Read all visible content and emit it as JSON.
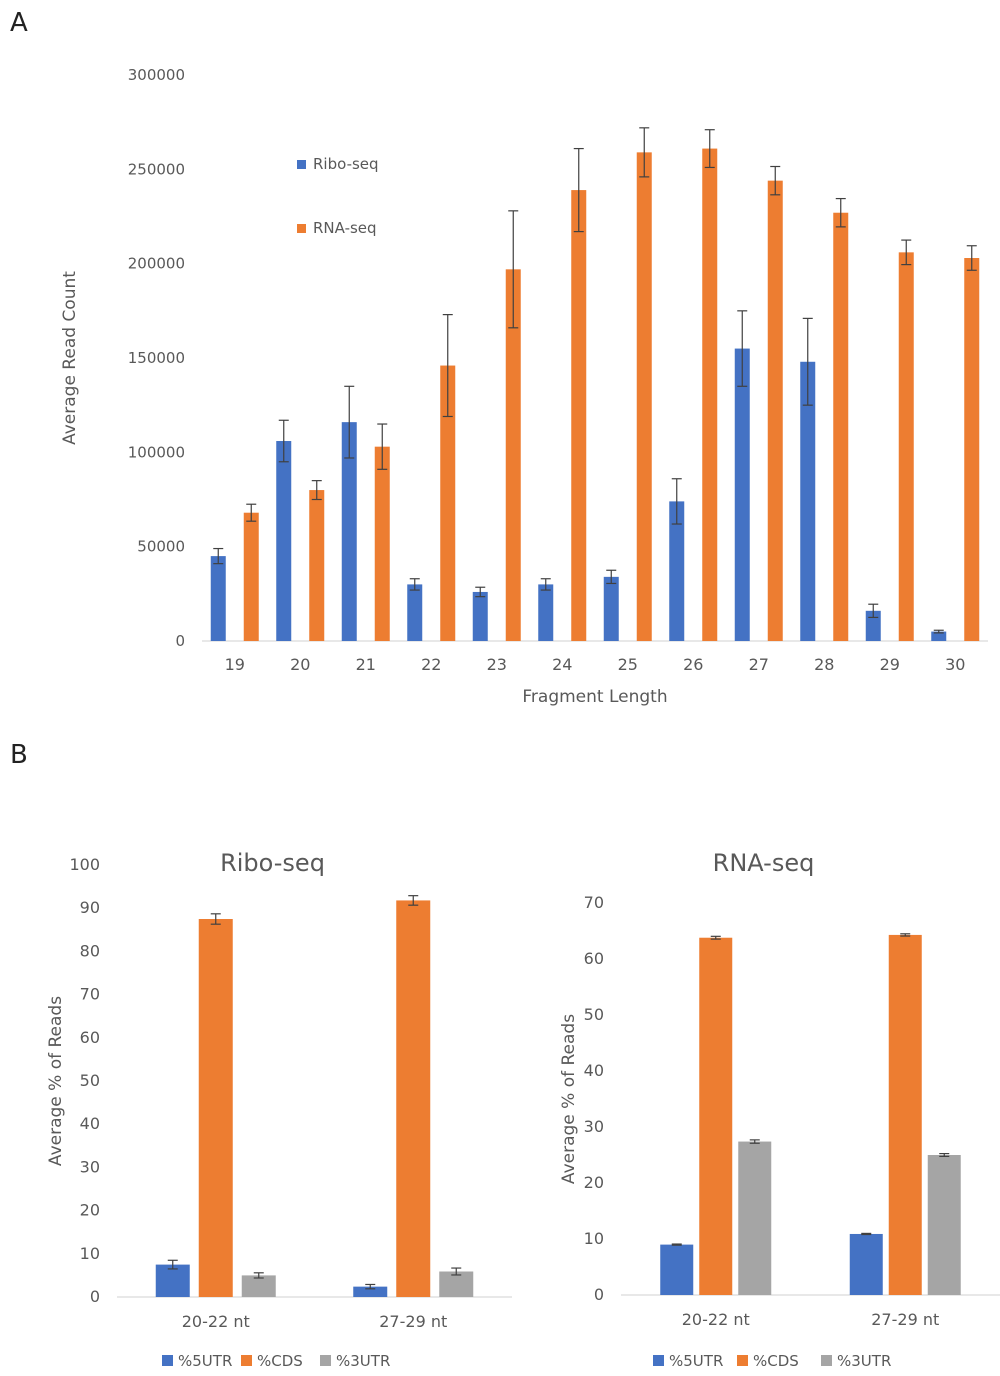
{
  "panels": {
    "a": "A",
    "b": "B"
  },
  "colors": {
    "blue": "#4472C4",
    "orange": "#ED7D31",
    "gray": "#A5A5A5",
    "text": "#595959",
    "axis": "#D9D9D9",
    "error": "#404040"
  },
  "chart_data": [
    {
      "type": "bar",
      "title": "",
      "xlabel": "Fragment Length",
      "ylabel": "Average Read Count",
      "categories": [
        "19",
        "20",
        "21",
        "22",
        "23",
        "24",
        "25",
        "26",
        "27",
        "28",
        "29",
        "30"
      ],
      "ylim": [
        0,
        300000
      ],
      "yticks": [
        "0",
        "50000",
        "100000",
        "150000",
        "200000",
        "250000",
        "300000"
      ],
      "grid": false,
      "legend_position": "top-left",
      "series": [
        {
          "name": "Ribo-seq",
          "color": "#4472C4",
          "values": [
            45000,
            106000,
            116000,
            30000,
            26000,
            30000,
            34000,
            74000,
            155000,
            148000,
            16000,
            5000
          ],
          "errors": [
            4000,
            11000,
            19000,
            3000,
            2500,
            3000,
            3500,
            12000,
            20000,
            23000,
            3500,
            700
          ]
        },
        {
          "name": "RNA-seq",
          "color": "#ED7D31",
          "values": [
            68000,
            80000,
            103000,
            146000,
            197000,
            239000,
            259000,
            261000,
            244000,
            227000,
            206000,
            203000
          ],
          "errors": [
            4500,
            5000,
            12000,
            27000,
            31000,
            22000,
            13000,
            10000,
            7500,
            7500,
            6500,
            6500
          ]
        }
      ]
    },
    {
      "type": "bar",
      "title": "Ribo-seq",
      "xlabel": "",
      "ylabel": "Average % of Reads",
      "categories": [
        "20-22 nt",
        "27-29 nt"
      ],
      "ylim": [
        0,
        100
      ],
      "yticks": [
        "0",
        "10",
        "20",
        "30",
        "40",
        "50",
        "60",
        "70",
        "80",
        "90",
        "100"
      ],
      "grid": false,
      "legend_position": "bottom",
      "series": [
        {
          "name": "%5UTR",
          "color": "#4472C4",
          "values": [
            7.5,
            2.4
          ],
          "errors": [
            1.0,
            0.5
          ]
        },
        {
          "name": "%CDS",
          "color": "#ED7D31",
          "values": [
            87.5,
            91.8
          ],
          "errors": [
            1.2,
            1.1
          ]
        },
        {
          "name": "%3UTR",
          "color": "#A5A5A5",
          "values": [
            5.0,
            5.9
          ],
          "errors": [
            0.6,
            0.8
          ]
        }
      ]
    },
    {
      "type": "bar",
      "title": "RNA-seq",
      "xlabel": "",
      "ylabel": "Average % of Reads",
      "categories": [
        "20-22 nt",
        "27-29 nt"
      ],
      "ylim": [
        0,
        70
      ],
      "yticks": [
        "0",
        "10",
        "20",
        "30",
        "40",
        "50",
        "60",
        "70"
      ],
      "grid": false,
      "legend_position": "bottom",
      "series": [
        {
          "name": "%5UTR",
          "color": "#4472C4",
          "values": [
            9.0,
            10.9
          ],
          "errors": [
            0.1,
            0.1
          ]
        },
        {
          "name": "%CDS",
          "color": "#ED7D31",
          "values": [
            63.8,
            64.3
          ],
          "errors": [
            0.25,
            0.2
          ]
        },
        {
          "name": "%3UTR",
          "color": "#A5A5A5",
          "values": [
            27.4,
            25.0
          ],
          "errors": [
            0.3,
            0.25
          ]
        }
      ]
    }
  ]
}
